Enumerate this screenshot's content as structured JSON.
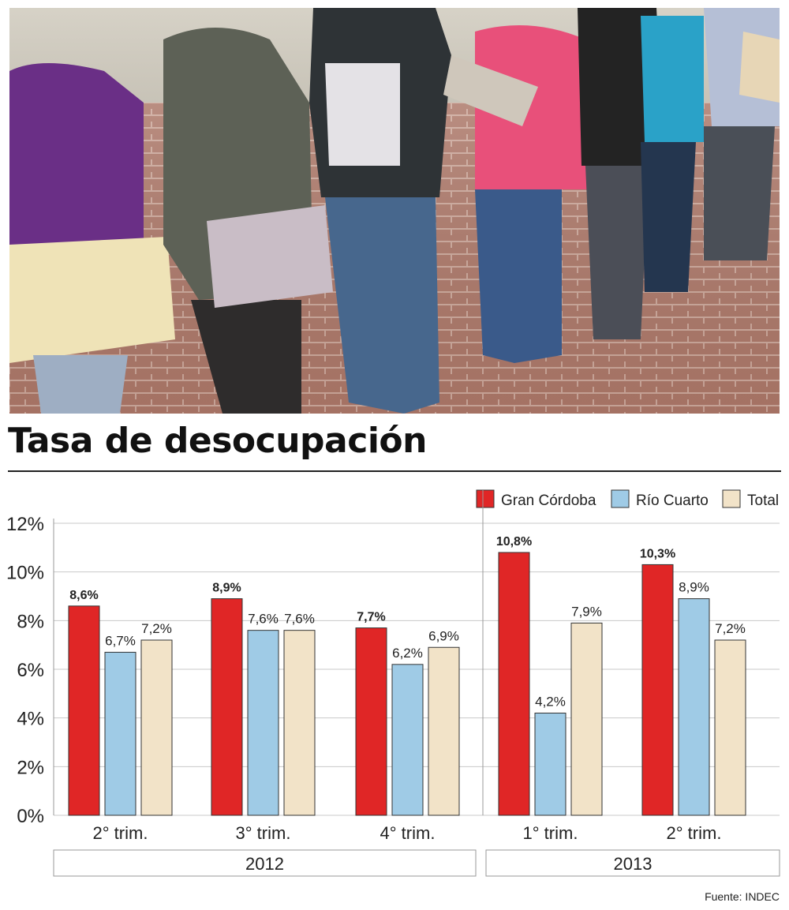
{
  "title": "Tasa de desocupación",
  "source": "Fuente: INDEC",
  "photo": {
    "icon": "job-seekers-queue-photo"
  },
  "chart_data": {
    "type": "bar",
    "title": "Tasa de desocupación",
    "xlabel": "",
    "ylabel": "",
    "ylim": [
      0,
      12
    ],
    "yticks": [
      0,
      2,
      4,
      6,
      8,
      10,
      12
    ],
    "ytick_labels": [
      "0%",
      "2%",
      "4%",
      "6%",
      "8%",
      "10%",
      "12%"
    ],
    "categories": [
      "2° trim.",
      "3° trim.",
      "4° trim.",
      "1° trim.",
      "2° trim."
    ],
    "groups": [
      {
        "label": "2012",
        "categories": [
          0,
          1,
          2
        ]
      },
      {
        "label": "2013",
        "categories": [
          3,
          4
        ]
      }
    ],
    "series": [
      {
        "name": "Gran Córdoba",
        "color": "#e02626",
        "values": [
          8.6,
          8.9,
          7.7,
          10.8,
          10.3
        ],
        "labels": [
          "8,6%",
          "8,9%",
          "7,7%",
          "10,8%",
          "10,3%"
        ]
      },
      {
        "name": "Río Cuarto",
        "color": "#9fcbe6",
        "values": [
          6.7,
          7.6,
          6.2,
          4.2,
          8.9
        ],
        "labels": [
          "6,7%",
          "7,6%",
          "6,2%",
          "4,2%",
          "8,9%"
        ]
      },
      {
        "name": "Total",
        "color": "#f2e3c8",
        "values": [
          7.2,
          7.6,
          6.9,
          7.9,
          7.2
        ],
        "labels": [
          "7,2%",
          "7,6%",
          "6,9%",
          "7,9%",
          "7,2%"
        ]
      }
    ],
    "grid": true,
    "legend": "top-right"
  }
}
